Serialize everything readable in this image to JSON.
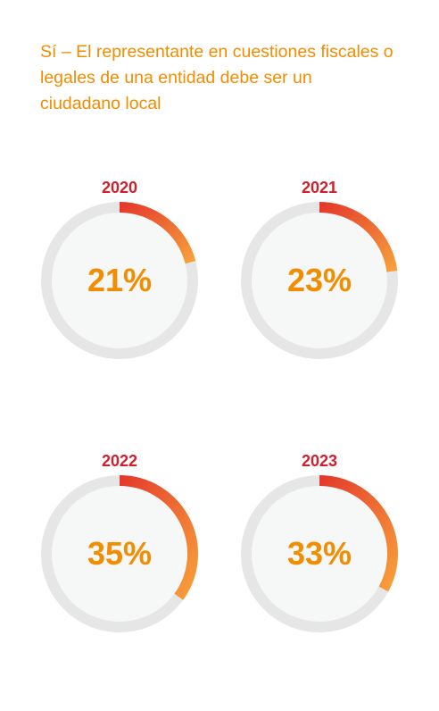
{
  "title": "Sí – El representante en cuestiones fiscales o legales de una entidad debe ser un ciudadano local",
  "colors": {
    "title": "#f28c00",
    "year": "#d1202d",
    "value": "#f28c00",
    "track": "#e6e6e6",
    "inner": "#f6f7f7",
    "arc_start": "#e4392c",
    "arc_end": "#f7a03a"
  },
  "chart_data": {
    "type": "pie",
    "subtype": "radial-progress",
    "title": "Sí – El representante en cuestiones fiscales o legales de una entidad debe ser un ciudadano local",
    "categories": [
      "2020",
      "2021",
      "2022",
      "2023"
    ],
    "values": [
      21,
      23,
      35,
      33
    ],
    "labels": [
      "21%",
      "23%",
      "35%",
      "33%"
    ],
    "unit": "%",
    "max": 100
  }
}
